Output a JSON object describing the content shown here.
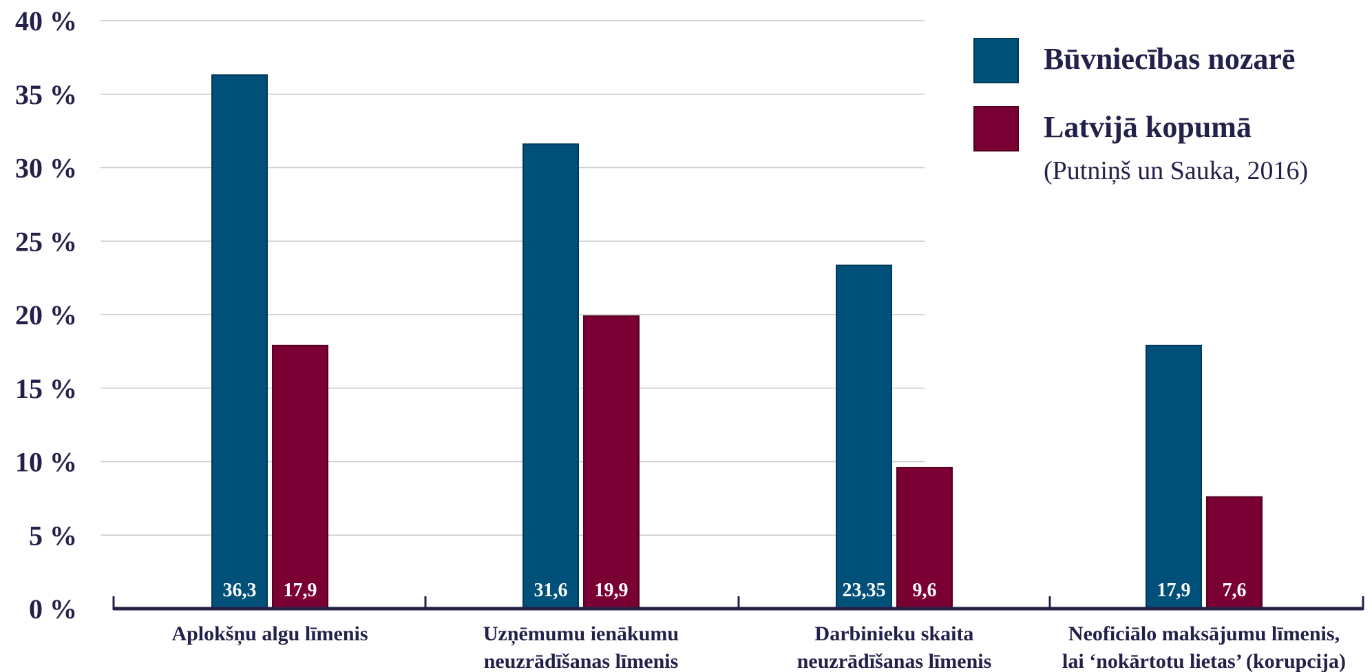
{
  "chart_data": {
    "type": "bar",
    "categories": [
      [
        "Aplokšņu algu līmenis"
      ],
      [
        "Uzņēmumu ienākumu",
        "neuzrādīšanas līmenis"
      ],
      [
        "Darbinieku skaita",
        "neuzrādīšanas līmenis"
      ],
      [
        "Neoficiālo maksājumu līmenis,",
        "lai ‘nokārtotu lietas’ (korupcija)"
      ]
    ],
    "series": [
      {
        "name": "Būvniecības nozarē",
        "color": "#00507a",
        "values": [
          36.3,
          31.6,
          23.35,
          17.9
        ],
        "labels": [
          "36,3",
          "31,6",
          "23,35",
          "17,9"
        ]
      },
      {
        "name": "Latvijā kopumā",
        "color": "#7a0033",
        "values": [
          17.9,
          19.9,
          9.6,
          7.6
        ],
        "labels": [
          "17,9",
          "19,9",
          "9,6",
          "7,6"
        ]
      }
    ],
    "yticks": [
      "0 %",
      "5 %",
      "10 %",
      "15 %",
      "20 %",
      "25 %",
      "30 %",
      "35 %",
      "40 %"
    ],
    "ylim": [
      0,
      40
    ],
    "grid": true,
    "legend_position": "top-right",
    "source_note": "(Putniņš un Sauka, 2016)",
    "colors": {
      "axis": "#23214a",
      "grid": "#c8c8c8",
      "text": "#23214a"
    }
  }
}
